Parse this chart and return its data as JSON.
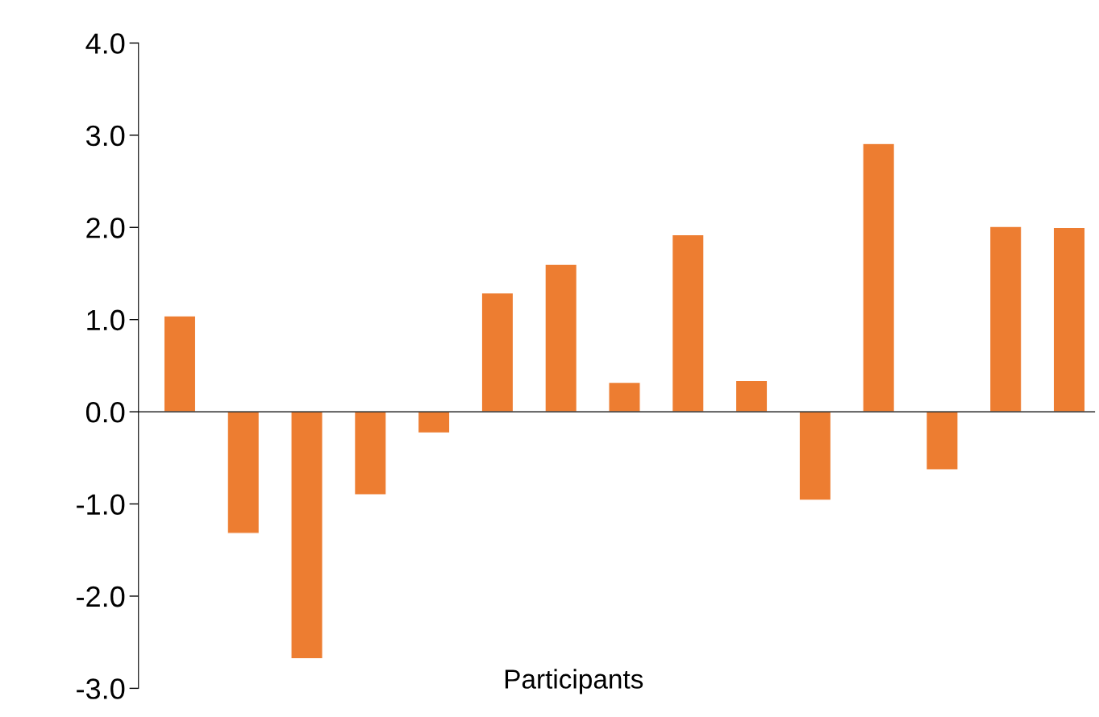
{
  "chart_data": {
    "type": "bar",
    "xlabel": "Participants",
    "categories": [
      null,
      null,
      null,
      null,
      null,
      null,
      null,
      null,
      null,
      null,
      null,
      null,
      null,
      null,
      null
    ],
    "values": [
      1.04,
      -1.32,
      -2.68,
      -0.9,
      -0.23,
      1.29,
      1.6,
      0.32,
      1.92,
      0.34,
      -0.96,
      2.91,
      -0.63,
      2.01,
      2.0
    ],
    "color": "#ed7d31",
    "ylim": [
      -3,
      4
    ],
    "yticks": [
      {
        "value": -3,
        "label": "-3.0"
      },
      {
        "value": -2,
        "label": "-2.0"
      },
      {
        "value": -1,
        "label": "-1.0"
      },
      {
        "value": 0,
        "label": "0.0"
      },
      {
        "value": 1,
        "label": "1.0"
      },
      {
        "value": 2,
        "label": "2.0"
      },
      {
        "value": 3,
        "label": "3.0"
      },
      {
        "value": 4,
        "label": "4.0"
      }
    ],
    "legend": false
  }
}
